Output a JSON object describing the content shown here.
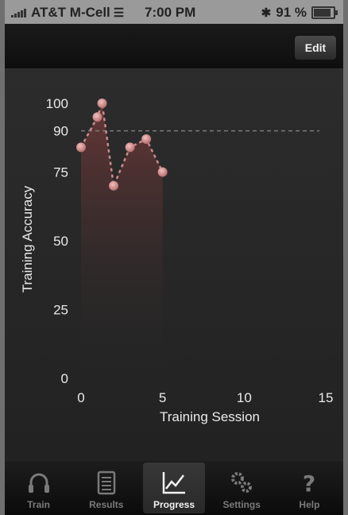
{
  "status_bar": {
    "carrier": "AT&T M-Cell",
    "time": "7:00 PM",
    "battery": "91 %",
    "battery_level": 0.91
  },
  "nav_bar": {
    "edit_label": "Edit"
  },
  "chart_data": {
    "type": "line",
    "title": "",
    "xlabel": "Training Session",
    "ylabel": "Training Accuracy",
    "xlim": [
      0,
      15
    ],
    "ylim": [
      0,
      100
    ],
    "x_ticks": [
      "0",
      "5",
      "10",
      "15"
    ],
    "y_ticks": [
      "0",
      "25",
      "50",
      "75",
      "90",
      "100"
    ],
    "reference_line": 90,
    "series": [
      {
        "x": [
          0,
          1,
          1,
          2,
          3,
          4,
          5
        ],
        "y": [
          84,
          95,
          100,
          70,
          84,
          87,
          75
        ]
      }
    ]
  },
  "tab_bar": {
    "tabs": [
      {
        "label": "Train",
        "icon": "headphones-icon",
        "active": false
      },
      {
        "label": "Results",
        "icon": "notepad-icon",
        "active": false
      },
      {
        "label": "Progress",
        "icon": "line-chart-icon",
        "active": true
      },
      {
        "label": "Settings",
        "icon": "gears-icon",
        "active": false
      },
      {
        "label": "Help",
        "icon": "question-icon",
        "active": false
      }
    ]
  }
}
